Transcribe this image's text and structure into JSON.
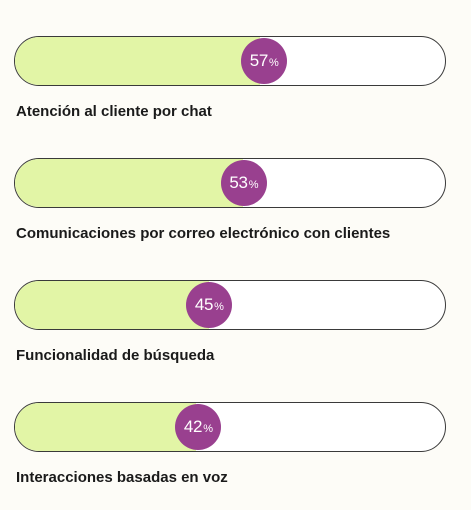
{
  "chart_data": {
    "type": "bar",
    "orientation": "horizontal",
    "xlim": [
      0,
      100
    ],
    "unit_label": "%",
    "colors": {
      "fill": "#e2f5a6",
      "badge": "#99408f",
      "track": "#ffffff",
      "outline": "#3a3a3a"
    },
    "categories": [
      "Atención al cliente por chat",
      "Comunicaciones por correo electrónico con clientes",
      "Funcionalidad de búsqueda",
      "Interacciones basadas en voz"
    ],
    "values": [
      57,
      53,
      45,
      42
    ]
  }
}
